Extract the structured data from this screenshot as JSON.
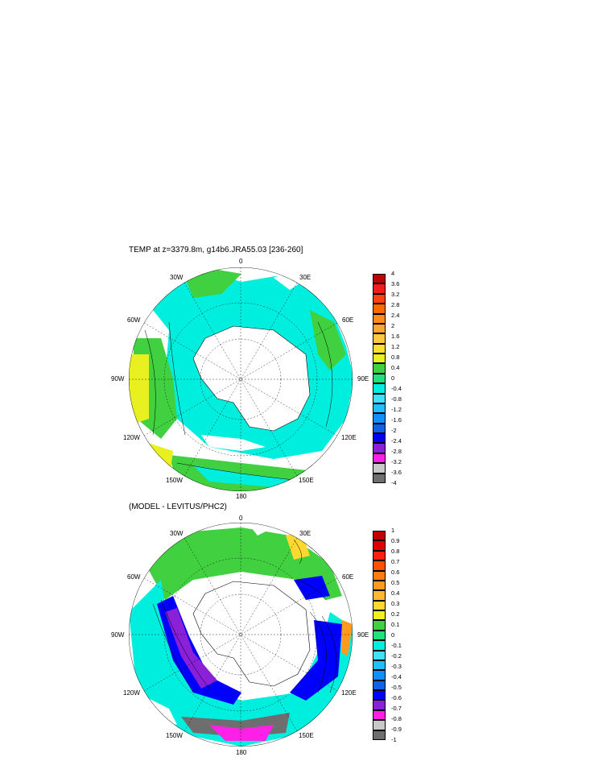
{
  "panel1": {
    "title": "TEMP at z=3379.8m, g14b6.JRA55.03 [236-260]",
    "lon_labels": {
      "top": "0",
      "top_left": "30W",
      "top_right": "30E",
      "left_upper": "60W",
      "right_upper": "60E",
      "left": "90W",
      "right": "90E",
      "left_lower": "120W",
      "right_lower": "120E",
      "bottom_left": "150W",
      "bottom_right": "150E",
      "bottom": "180"
    },
    "colorbar": {
      "labels": [
        "4",
        "3.6",
        "3.2",
        "2.8",
        "2.4",
        "2",
        "1.6",
        "1.2",
        "0.8",
        "0.4",
        "0",
        "-0.4",
        "-0.8",
        "-1.2",
        "-1.6",
        "-2",
        "-2.4",
        "-2.8",
        "-3.2",
        "-3.6",
        "-4"
      ],
      "colors": [
        "#c00000",
        "#f21c1c",
        "#ff4010",
        "#ff6a00",
        "#ff8c1a",
        "#ffa632",
        "#ffc840",
        "#ffe030",
        "#e8f020",
        "#40d040",
        "#20e080",
        "#00eede",
        "#40e0ff",
        "#20c0ff",
        "#1090ff",
        "#1060e8",
        "#0000ff",
        "#8a20d8",
        "#ff20e8",
        "#c8c8c8",
        "#6e6e6e"
      ]
    }
  },
  "panel2": {
    "title": "(MODEL - LEVITUS/PHC2)",
    "lon_labels": {
      "top": "0",
      "top_left": "30W",
      "top_right": "30E",
      "left_upper": "60W",
      "right_upper": "60E",
      "left": "90W",
      "right": "90E",
      "left_lower": "120W",
      "right_lower": "120E",
      "bottom_left": "150W",
      "bottom_right": "150E",
      "bottom": "180"
    },
    "colorbar": {
      "labels": [
        "1",
        "0.9",
        "0.8",
        "0.7",
        "0.6",
        "0.5",
        "0.4",
        "0.3",
        "0.2",
        "0.1",
        "0",
        "-0.1",
        "-0.2",
        "-0.3",
        "-0.4",
        "-0.5",
        "-0.6",
        "-0.7",
        "-0.8",
        "-0.9",
        "-1"
      ],
      "colors": [
        "#c00000",
        "#e00000",
        "#ff2010",
        "#ff5000",
        "#ff7a10",
        "#ff9a20",
        "#ffb830",
        "#ffd830",
        "#f0f020",
        "#40d040",
        "#20e080",
        "#00eede",
        "#40e0ff",
        "#20c0ff",
        "#1090ff",
        "#1060e8",
        "#0000ff",
        "#8a20d8",
        "#ff20e8",
        "#c8c8c8",
        "#6e6e6e"
      ]
    }
  },
  "colors": {
    "land": "#ffffff",
    "outline": "#000000"
  }
}
